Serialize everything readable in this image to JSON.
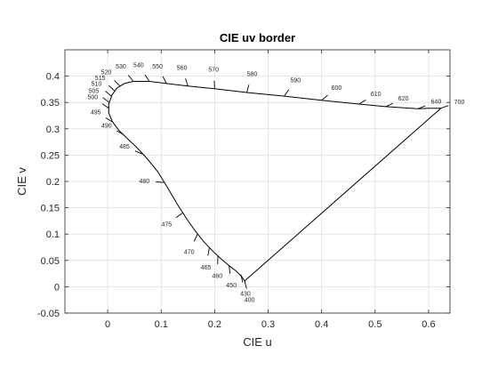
{
  "chart_data": {
    "type": "line",
    "title": "CIE uv border",
    "xlabel": "CIE u",
    "ylabel": "CIE v",
    "xlim": [
      -0.08,
      0.64
    ],
    "ylim": [
      -0.05,
      0.45
    ],
    "x_ticks": [
      0,
      0.1,
      0.2,
      0.3,
      0.4,
      0.5,
      0.6
    ],
    "x_tick_labels": [
      "0",
      "0.1",
      "0.2",
      "0.3",
      "0.4",
      "0.5",
      "0.6"
    ],
    "y_ticks": [
      -0.05,
      0,
      0.05,
      0.1,
      0.15,
      0.2,
      0.25,
      0.3,
      0.35,
      0.4
    ],
    "y_tick_labels": [
      "-0.05",
      "0",
      "0.05",
      "0.1",
      "0.15",
      "0.2",
      "0.25",
      "0.3",
      "0.35",
      "0.4"
    ],
    "grid": true,
    "colors": {
      "line": "#000000",
      "grid": "#dfdfdf",
      "axis": "#262626"
    },
    "border": [
      [
        0.256,
        0.011
      ],
      [
        0.25,
        0.02
      ],
      [
        0.24,
        0.03
      ],
      [
        0.227,
        0.04
      ],
      [
        0.213,
        0.052
      ],
      [
        0.197,
        0.067
      ],
      [
        0.18,
        0.085
      ],
      [
        0.163,
        0.107
      ],
      [
        0.147,
        0.13
      ],
      [
        0.13,
        0.157
      ],
      [
        0.112,
        0.188
      ],
      [
        0.094,
        0.218
      ],
      [
        0.074,
        0.243
      ],
      [
        0.055,
        0.264
      ],
      [
        0.037,
        0.281
      ],
      [
        0.021,
        0.297
      ],
      [
        0.009,
        0.313
      ],
      [
        0.002,
        0.33
      ],
      [
        0.002,
        0.347
      ],
      [
        0.008,
        0.364
      ],
      [
        0.017,
        0.377
      ],
      [
        0.031,
        0.386
      ],
      [
        0.048,
        0.39
      ],
      [
        0.078,
        0.39
      ],
      [
        0.11,
        0.386
      ],
      [
        0.15,
        0.381
      ],
      [
        0.2,
        0.376
      ],
      [
        0.26,
        0.369
      ],
      [
        0.33,
        0.362
      ],
      [
        0.4,
        0.354
      ],
      [
        0.47,
        0.347
      ],
      [
        0.52,
        0.342
      ],
      [
        0.58,
        0.338
      ],
      [
        0.6,
        0.339
      ],
      [
        0.623,
        0.339
      ],
      [
        0.256,
        0.011
      ]
    ],
    "wavelengths": [
      {
        "label": "400",
        "u": 0.256,
        "v": 0.011,
        "side": "outer"
      },
      {
        "label": "430",
        "u": 0.249,
        "v": 0.023,
        "side": "outer"
      },
      {
        "label": "450",
        "u": 0.227,
        "v": 0.04,
        "side": "outer"
      },
      {
        "label": "460",
        "u": 0.206,
        "v": 0.058,
        "side": "outer"
      },
      {
        "label": "465",
        "u": 0.19,
        "v": 0.074,
        "side": "outer"
      },
      {
        "label": "470",
        "u": 0.168,
        "v": 0.1,
        "side": "outer"
      },
      {
        "label": "475",
        "u": 0.14,
        "v": 0.14,
        "side": "outer"
      },
      {
        "label": "480",
        "u": 0.105,
        "v": 0.198,
        "side": "outer"
      },
      {
        "label": "485",
        "u": 0.065,
        "v": 0.252,
        "side": "outer"
      },
      {
        "label": "490",
        "u": 0.03,
        "v": 0.289,
        "side": "outer"
      },
      {
        "label": "495",
        "u": 0.009,
        "v": 0.313,
        "side": "outer"
      },
      {
        "label": "500",
        "u": 0.002,
        "v": 0.339,
        "side": "outer"
      },
      {
        "label": "505",
        "u": 0.003,
        "v": 0.35,
        "side": "outer"
      },
      {
        "label": "510",
        "u": 0.007,
        "v": 0.362,
        "side": "outer"
      },
      {
        "label": "515",
        "u": 0.013,
        "v": 0.372,
        "side": "outer"
      },
      {
        "label": "520",
        "u": 0.023,
        "v": 0.381,
        "side": "outer"
      },
      {
        "label": "530",
        "u": 0.048,
        "v": 0.39,
        "side": "outer"
      },
      {
        "label": "540",
        "u": 0.078,
        "v": 0.39,
        "side": "outer"
      },
      {
        "label": "550",
        "u": 0.11,
        "v": 0.386,
        "side": "outer"
      },
      {
        "label": "560",
        "u": 0.15,
        "v": 0.381,
        "side": "outer"
      },
      {
        "label": "570",
        "u": 0.2,
        "v": 0.376,
        "side": "outer"
      },
      {
        "label": "580",
        "u": 0.26,
        "v": 0.369,
        "side": "outer"
      },
      {
        "label": "590",
        "u": 0.33,
        "v": 0.362,
        "side": "outer"
      },
      {
        "label": "600",
        "u": 0.4,
        "v": 0.354,
        "side": "outer"
      },
      {
        "label": "610",
        "u": 0.47,
        "v": 0.347,
        "side": "outer"
      },
      {
        "label": "620",
        "u": 0.52,
        "v": 0.342,
        "side": "outer"
      },
      {
        "label": "640",
        "u": 0.58,
        "v": 0.338,
        "side": "outer"
      },
      {
        "label": "700",
        "u": 0.623,
        "v": 0.339,
        "side": "outer"
      }
    ]
  }
}
